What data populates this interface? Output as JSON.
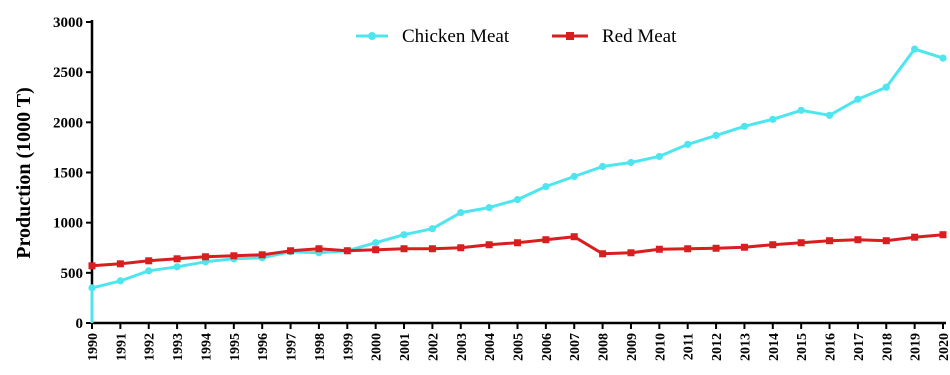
{
  "chart_data": {
    "type": "line",
    "title": "",
    "xlabel": "",
    "ylabel": "Production (1000 T)",
    "ylim": [
      0,
      3000
    ],
    "yticks": [
      "0",
      "500",
      "1000",
      "1500",
      "2000",
      "2500",
      "3000"
    ],
    "x": [
      "1990",
      "1991",
      "1992",
      "1993",
      "1994",
      "1995",
      "1996",
      "1997",
      "1998",
      "1999",
      "2000",
      "2001",
      "2002",
      "2003",
      "2004",
      "2005",
      "2006",
      "2007",
      "2008",
      "2009",
      "2010",
      "2011",
      "2012",
      "2013",
      "2014",
      "2015",
      "2016",
      "2017",
      "2018",
      "2019",
      "2020"
    ],
    "legend_position": "top-center",
    "grid": false,
    "series": [
      {
        "name": "Chicken Meat",
        "color": "#4de6ee",
        "marker": "circle",
        "values": [
          350,
          420,
          520,
          560,
          610,
          640,
          650,
          710,
          700,
          720,
          800,
          880,
          940,
          1100,
          1150,
          1230,
          1360,
          1460,
          1560,
          1600,
          1660,
          1780,
          1870,
          1960,
          2030,
          2120,
          2070,
          2230,
          2350,
          2730,
          2640
        ]
      },
      {
        "name": "Red Meat",
        "color": "#d81e1e",
        "marker": "square",
        "values": [
          570,
          590,
          620,
          640,
          660,
          670,
          680,
          720,
          740,
          720,
          730,
          740,
          740,
          750,
          780,
          800,
          830,
          860,
          690,
          700,
          735,
          740,
          745,
          755,
          780,
          800,
          820,
          830,
          820,
          855,
          880
        ]
      }
    ]
  }
}
